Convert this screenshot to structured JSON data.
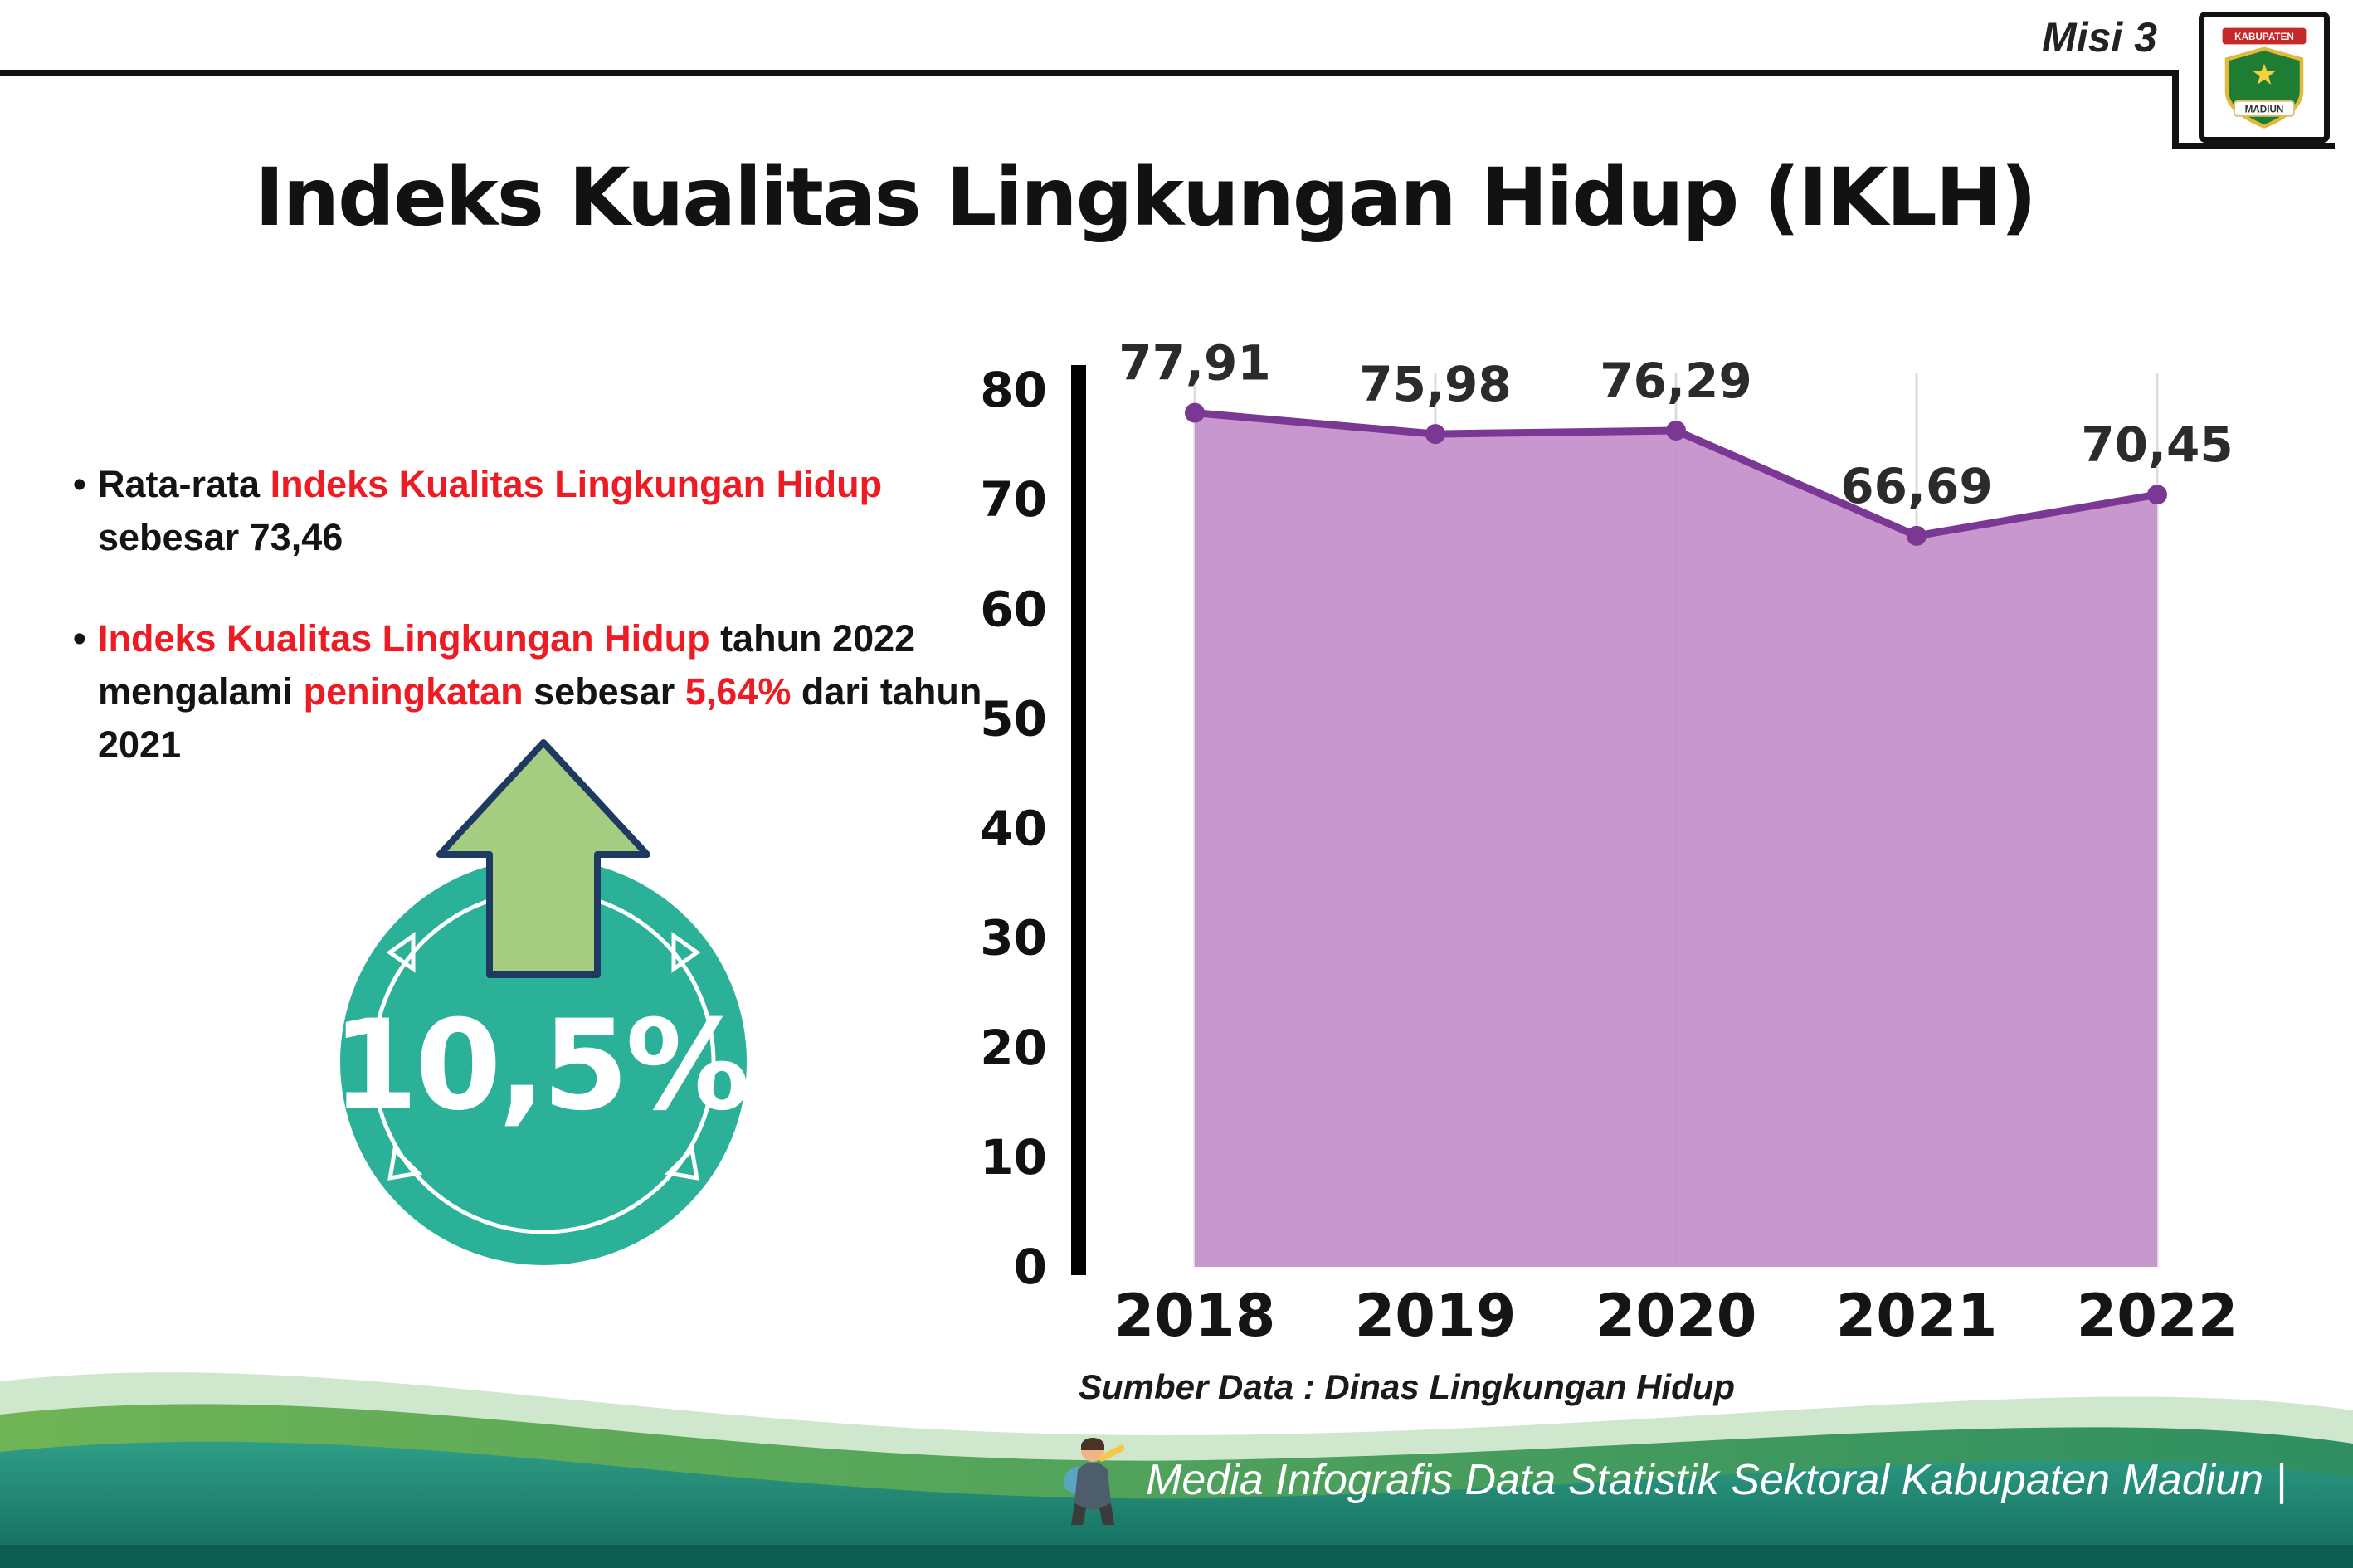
{
  "header": {
    "misi": "Misi 3",
    "title": "Indeks Kualitas Lingkungan Hidup (IKLH)",
    "logo": {
      "name": "kabupaten-madiun-emblem",
      "text_top": "KABUPATEN",
      "text_bottom": "MADIUN"
    }
  },
  "bullets": {
    "b1": {
      "pre": "Rata-rata ",
      "red": "Indeks Kualitas Lingkungan Hidup",
      "post": " sebesar 73,46"
    },
    "b2": {
      "red1": "Indeks Kualitas Lingkungan Hidup",
      "t1": " tahun 2022 mengalami ",
      "red2": "peningkatan",
      "t2": " sebesar ",
      "red3": "5,64%",
      "t3": " dari tahun 2021"
    }
  },
  "badge": {
    "value": "10,5%"
  },
  "chart_data": {
    "type": "area",
    "title": "Indeks Kualitas Lingkungan Hidup (IKLH)",
    "categories": [
      "2018",
      "2019",
      "2020",
      "2021",
      "2022"
    ],
    "values": [
      77.91,
      75.98,
      76.29,
      66.69,
      70.45
    ],
    "point_labels": [
      "77,91",
      "75,98",
      "76,29",
      "66,69",
      "70,45"
    ],
    "ylim": [
      0,
      80
    ],
    "ytick_step": 10,
    "grid": "vertical-light",
    "legend": "none",
    "line_color": "#7a3794",
    "fill_color": "#c48fca",
    "marker_color": "#7a3794",
    "source": "Sumber Data : Dinas Lingkungan Hidup"
  },
  "source_note": "Sumber Data : Dinas Lingkungan Hidup",
  "footer": {
    "text": "Media Infografis Data Statistik Sektoral Kabupaten Madiun |"
  },
  "colors": {
    "accent_red": "#ed1c24",
    "teal_circle": "#2cb199",
    "arrow_green": "#a5cc80",
    "arrow_outline": "#1f3a60",
    "purple_line": "#7a3794",
    "purple_fill": "#c48fca",
    "wave_dark_teal": "#11695b",
    "wave_green": "#5aa852"
  }
}
